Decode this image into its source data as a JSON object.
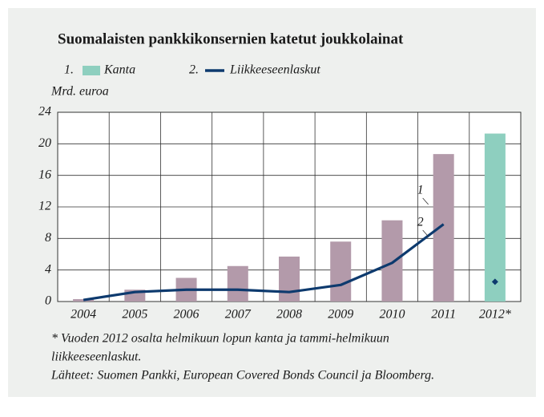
{
  "chart_data": {
    "type": "bar-line",
    "title": "Suomalaisten pankkikonsernien katetut joukkolainat",
    "y_axis_label": "Mrd. euroa",
    "categories": [
      "2004",
      "2005",
      "2006",
      "2007",
      "2008",
      "2009",
      "2010",
      "2011",
      "2012*"
    ],
    "series": [
      {
        "name": "Kanta",
        "legend_number": "1.",
        "type": "bar",
        "color": "#8ecfbf",
        "colors": [
          "#b39aaa",
          "#b39aaa",
          "#b39aaa",
          "#b39aaa",
          "#b39aaa",
          "#b39aaa",
          "#b39aaa",
          "#b39aaa",
          "#8ecfbf"
        ],
        "values": [
          0.3,
          1.5,
          3.0,
          4.5,
          5.7,
          7.6,
          10.3,
          18.7,
          21.3
        ]
      },
      {
        "name": "Liikkeeseenlaskut",
        "legend_number": "2.",
        "type": "line",
        "color": "#0d3a6e",
        "values": [
          0.2,
          1.2,
          1.5,
          1.5,
          1.2,
          2.1,
          4.9,
          9.8,
          2.5
        ]
      }
    ],
    "highlight": 8,
    "ylim": [
      0,
      24
    ],
    "yticks": [
      0,
      4,
      8,
      12,
      16,
      20,
      24
    ],
    "grid": true,
    "annotations": [
      {
        "text": "1",
        "series": 0
      },
      {
        "text": "2",
        "series": 1
      }
    ],
    "notes": [
      "* Vuoden 2012 osalta helmikuun lopun kanta ja tammi-helmikuun",
      "liikkeeseenlaskut.",
      "Lähteet: Suomen Pankki, European Covered Bonds Council ja Bloomberg."
    ]
  }
}
